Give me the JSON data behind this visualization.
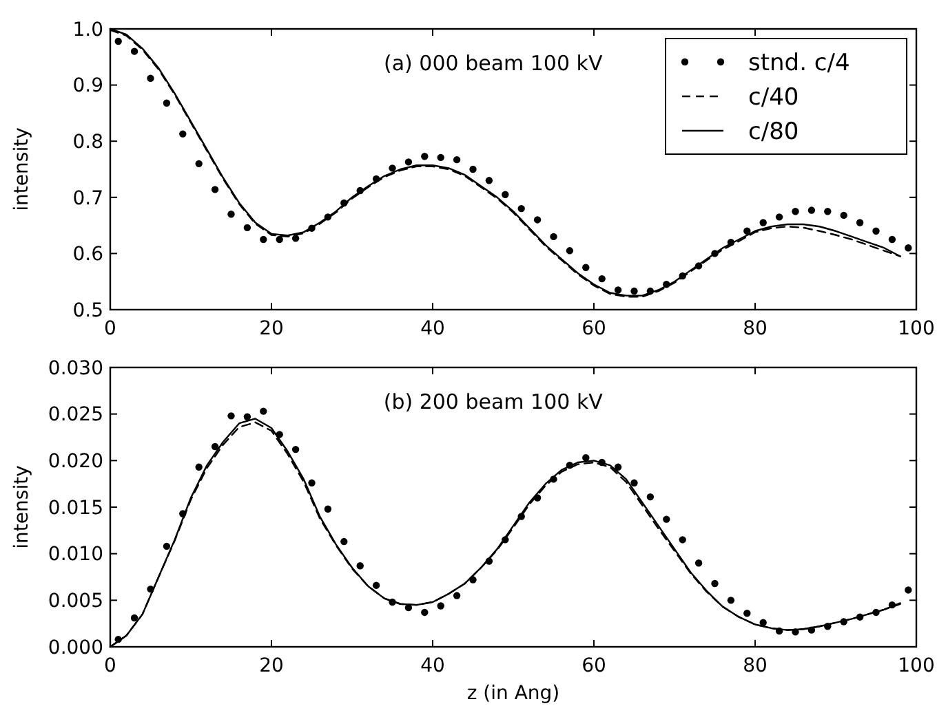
{
  "chart_data": [
    {
      "type": "line",
      "ylabel": "intensity",
      "annotations": [
        "(a) 000 beam 100 kV"
      ],
      "xlim": [
        0,
        100
      ],
      "xticks": [
        0,
        20,
        40,
        60,
        80,
        100
      ],
      "ylim": [
        0.5,
        1.0
      ],
      "yticks": [
        {
          "value": 0.5,
          "label": "0.5"
        },
        {
          "value": 0.6,
          "label": "0.6"
        },
        {
          "value": 0.7,
          "label": "0.7"
        },
        {
          "value": 0.8,
          "label": "0.8"
        },
        {
          "value": 0.9,
          "label": "0.9"
        },
        {
          "value": 1.0,
          "label": "1.0"
        }
      ],
      "grid": false,
      "legend": "top right",
      "series": [
        {
          "name": "stnd. c/4",
          "type": "scatter",
          "marker": "circle",
          "color": "#000000",
          "x": [
            1,
            3,
            5,
            7,
            9,
            11,
            13,
            15,
            17,
            19,
            21,
            23,
            25,
            27,
            29,
            31,
            33,
            35,
            37,
            39,
            41,
            43,
            45,
            47,
            49,
            51,
            53,
            55,
            57,
            59,
            61,
            63,
            65,
            67,
            69,
            71,
            73,
            75,
            77,
            79,
            81,
            83,
            85,
            87,
            89,
            91,
            93,
            95,
            97,
            99
          ],
          "values": [
            0.978,
            0.96,
            0.912,
            0.868,
            0.813,
            0.76,
            0.714,
            0.67,
            0.646,
            0.625,
            0.625,
            0.627,
            0.645,
            0.665,
            0.69,
            0.712,
            0.733,
            0.752,
            0.763,
            0.773,
            0.771,
            0.767,
            0.75,
            0.73,
            0.705,
            0.68,
            0.66,
            0.63,
            0.605,
            0.575,
            0.555,
            0.535,
            0.533,
            0.533,
            0.545,
            0.56,
            0.578,
            0.6,
            0.62,
            0.64,
            0.655,
            0.665,
            0.675,
            0.677,
            0.675,
            0.668,
            0.655,
            0.64,
            0.625,
            0.61
          ]
        },
        {
          "name": "c/40",
          "type": "line",
          "line_style": "dashed",
          "marker": "none",
          "color": "#000000",
          "x": [
            0,
            2,
            4,
            6,
            8,
            10,
            12,
            14,
            16,
            18,
            20,
            22,
            24,
            26,
            28,
            30,
            32,
            34,
            36,
            38,
            40,
            42,
            44,
            46,
            48,
            50,
            52,
            54,
            56,
            58,
            60,
            62,
            64,
            66,
            68,
            70,
            72,
            74,
            76,
            78,
            80,
            82,
            84,
            86,
            88,
            90,
            92,
            94,
            96,
            98
          ],
          "values": [
            0.998,
            0.988,
            0.963,
            0.928,
            0.883,
            0.833,
            0.783,
            0.733,
            0.688,
            0.653,
            0.633,
            0.63,
            0.636,
            0.653,
            0.673,
            0.698,
            0.718,
            0.736,
            0.748,
            0.755,
            0.755,
            0.75,
            0.738,
            0.718,
            0.698,
            0.673,
            0.643,
            0.613,
            0.588,
            0.563,
            0.543,
            0.528,
            0.523,
            0.523,
            0.533,
            0.548,
            0.568,
            0.588,
            0.607,
            0.622,
            0.638,
            0.645,
            0.648,
            0.646,
            0.64,
            0.633,
            0.625,
            0.615,
            0.605,
            0.595
          ]
        },
        {
          "name": "c/80",
          "type": "line",
          "line_style": "solid",
          "marker": "none",
          "color": "#000000",
          "x": [
            0,
            2,
            4,
            6,
            8,
            10,
            12,
            14,
            16,
            18,
            20,
            22,
            24,
            26,
            28,
            30,
            32,
            34,
            36,
            38,
            40,
            42,
            44,
            46,
            48,
            50,
            52,
            54,
            56,
            58,
            60,
            62,
            64,
            66,
            68,
            70,
            72,
            74,
            76,
            78,
            80,
            82,
            84,
            86,
            88,
            90,
            92,
            94,
            96,
            98
          ],
          "values": [
            1.0,
            0.99,
            0.965,
            0.93,
            0.885,
            0.835,
            0.785,
            0.735,
            0.69,
            0.655,
            0.635,
            0.632,
            0.638,
            0.655,
            0.675,
            0.7,
            0.72,
            0.738,
            0.75,
            0.757,
            0.757,
            0.752,
            0.74,
            0.72,
            0.7,
            0.675,
            0.645,
            0.615,
            0.59,
            0.565,
            0.545,
            0.53,
            0.525,
            0.525,
            0.535,
            0.55,
            0.57,
            0.59,
            0.61,
            0.625,
            0.64,
            0.648,
            0.652,
            0.652,
            0.648,
            0.64,
            0.63,
            0.62,
            0.61,
            0.595
          ]
        }
      ]
    },
    {
      "type": "line",
      "xlabel": "z (in Ang)",
      "ylabel": "intensity",
      "annotations": [
        "(b) 200 beam 100 kV"
      ],
      "xlim": [
        0,
        100
      ],
      "xticks": [
        0,
        20,
        40,
        60,
        80,
        100
      ],
      "ylim": [
        0,
        0.03
      ],
      "yticks": [
        {
          "value": 0,
          "label": "0.000"
        },
        {
          "value": 0.005,
          "label": "0.005"
        },
        {
          "value": 0.01,
          "label": "0.010"
        },
        {
          "value": 0.015,
          "label": "0.015"
        },
        {
          "value": 0.02,
          "label": "0.020"
        },
        {
          "value": 0.025,
          "label": "0.025"
        },
        {
          "value": 0.03,
          "label": "0.030"
        }
      ],
      "grid": false,
      "legend": false,
      "series": [
        {
          "type": "scatter",
          "marker": "circle",
          "color": "#000000",
          "x": [
            1,
            3,
            5,
            7,
            9,
            11,
            13,
            15,
            17,
            19,
            21,
            23,
            25,
            27,
            29,
            31,
            33,
            35,
            37,
            39,
            41,
            43,
            45,
            47,
            49,
            51,
            53,
            55,
            57,
            59,
            61,
            63,
            65,
            67,
            69,
            71,
            73,
            75,
            77,
            79,
            81,
            83,
            85,
            87,
            89,
            91,
            93,
            95,
            97,
            99
          ],
          "values": [
            0.0008,
            0.0031,
            0.0062,
            0.0108,
            0.0143,
            0.0193,
            0.0215,
            0.0248,
            0.0247,
            0.0253,
            0.0228,
            0.0212,
            0.0176,
            0.0148,
            0.0113,
            0.0087,
            0.0066,
            0.0048,
            0.0042,
            0.0037,
            0.0044,
            0.0055,
            0.0072,
            0.0092,
            0.0115,
            0.014,
            0.016,
            0.018,
            0.0195,
            0.0203,
            0.0198,
            0.0193,
            0.0176,
            0.0161,
            0.0137,
            0.0115,
            0.009,
            0.0068,
            0.005,
            0.0036,
            0.0026,
            0.0017,
            0.0016,
            0.0018,
            0.0022,
            0.0027,
            0.0032,
            0.0037,
            0.0045,
            0.0061
          ]
        },
        {
          "type": "line",
          "line_style": "dashed",
          "marker": "none",
          "color": "#000000",
          "x": [
            0,
            2,
            4,
            6,
            8,
            10,
            12,
            14,
            16,
            18,
            20,
            22,
            24,
            26,
            28,
            30,
            32,
            34,
            36,
            38,
            40,
            42,
            44,
            46,
            48,
            50,
            52,
            54,
            56,
            58,
            60,
            62,
            64,
            66,
            68,
            70,
            72,
            74,
            76,
            78,
            80,
            82,
            84,
            86,
            88,
            90,
            92,
            94,
            96,
            98
          ],
          "values": [
            0,
            0.0012,
            0.0035,
            0.0075,
            0.0114,
            0.0158,
            0.0192,
            0.0217,
            0.0236,
            0.0241,
            0.0232,
            0.0207,
            0.0177,
            0.0138,
            0.0109,
            0.0084,
            0.0065,
            0.0052,
            0.0046,
            0.0045,
            0.0048,
            0.0057,
            0.0068,
            0.0085,
            0.0104,
            0.0128,
            0.0153,
            0.0173,
            0.0188,
            0.0196,
            0.0198,
            0.0193,
            0.0177,
            0.0152,
            0.0127,
            0.0103,
            0.0079,
            0.0059,
            0.0043,
            0.0032,
            0.0024,
            0.002,
            0.0018,
            0.0019,
            0.0022,
            0.0026,
            0.003,
            0.0035,
            0.004,
            0.0046
          ]
        },
        {
          "type": "line",
          "line_style": "solid",
          "marker": "none",
          "color": "#000000",
          "x": [
            0,
            2,
            4,
            6,
            8,
            10,
            12,
            14,
            16,
            18,
            20,
            22,
            24,
            26,
            28,
            30,
            32,
            34,
            36,
            38,
            40,
            42,
            44,
            46,
            48,
            50,
            52,
            54,
            56,
            58,
            60,
            62,
            64,
            66,
            68,
            70,
            72,
            74,
            76,
            78,
            80,
            82,
            84,
            86,
            88,
            90,
            92,
            94,
            96,
            98
          ],
          "values": [
            0,
            0.0012,
            0.0035,
            0.0075,
            0.0115,
            0.016,
            0.0195,
            0.022,
            0.024,
            0.0245,
            0.0235,
            0.021,
            0.018,
            0.014,
            0.011,
            0.0085,
            0.0065,
            0.0052,
            0.0046,
            0.0045,
            0.0048,
            0.0057,
            0.0068,
            0.0085,
            0.0105,
            0.013,
            0.0155,
            0.0175,
            0.019,
            0.0198,
            0.02,
            0.0195,
            0.018,
            0.0155,
            0.013,
            0.0105,
            0.008,
            0.006,
            0.0043,
            0.0032,
            0.0024,
            0.002,
            0.0018,
            0.0019,
            0.0022,
            0.0026,
            0.003,
            0.0035,
            0.004,
            0.0047
          ]
        }
      ]
    }
  ]
}
